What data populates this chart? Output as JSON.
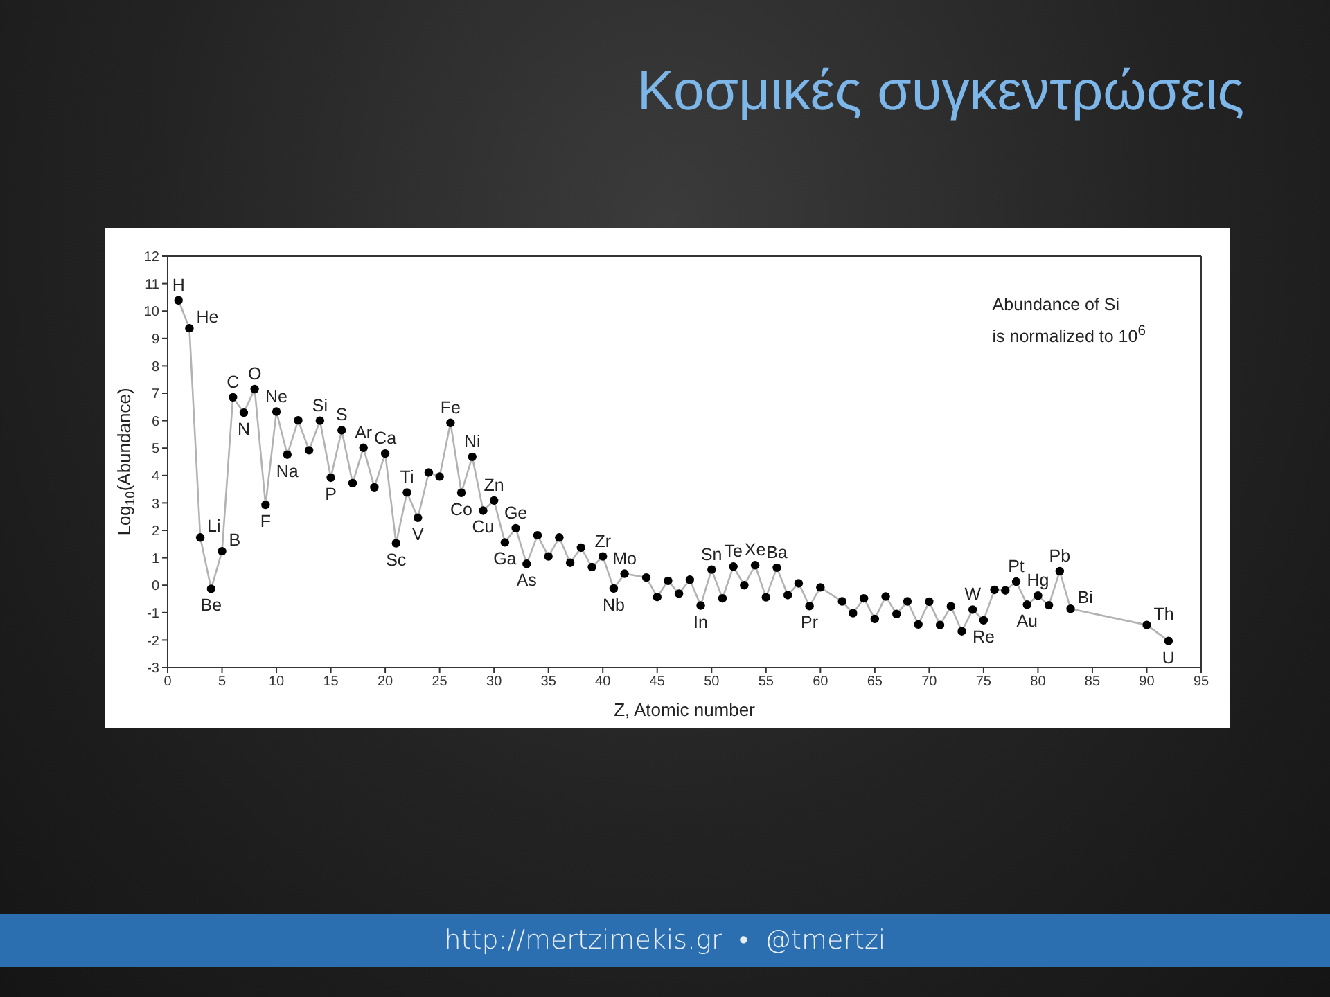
{
  "chart_data": {
    "type": "line",
    "title": "Κοσμικές συγκεντρώσεις",
    "xlabel": "Z, Atomic number",
    "ylabel": "Log$_{10}$(Abundance)",
    "x": [
      1,
      2,
      3,
      4,
      5,
      6,
      7,
      8,
      9,
      10,
      11,
      12,
      13,
      14,
      15,
      16,
      17,
      18,
      19,
      20,
      21,
      22,
      23,
      24,
      25,
      26,
      27,
      28,
      29,
      30,
      31,
      32,
      33,
      34,
      35,
      36,
      37,
      38,
      39,
      40,
      41,
      42,
      44,
      45,
      46,
      47,
      48,
      49,
      50,
      51,
      52,
      53,
      54,
      55,
      56,
      57,
      58,
      59,
      60,
      62,
      63,
      64,
      65,
      66,
      67,
      68,
      69,
      70,
      71,
      72,
      73,
      74,
      75,
      76,
      77,
      78,
      79,
      80,
      81,
      82,
      83,
      90,
      92
    ],
    "series": [
      {
        "color": "#000000",
        "values": [
          10.39,
          9.37,
          1.74,
          -0.13,
          1.24,
          6.85,
          6.29,
          7.15,
          2.93,
          6.33,
          4.76,
          6.01,
          4.92,
          6.0,
          3.92,
          5.65,
          3.72,
          5.01,
          3.57,
          4.8,
          1.53,
          3.38,
          2.46,
          4.11,
          3.96,
          5.92,
          3.37,
          4.68,
          2.72,
          3.09,
          1.56,
          2.08,
          0.78,
          1.82,
          1.05,
          1.74,
          0.82,
          1.37,
          0.66,
          1.05,
          -0.12,
          0.42,
          0.28,
          -0.43,
          0.16,
          -0.31,
          0.2,
          -0.74,
          0.57,
          -0.48,
          0.68,
          0.0,
          0.73,
          -0.44,
          0.64,
          -0.36,
          0.07,
          -0.76,
          -0.08,
          -0.59,
          -1.02,
          -0.48,
          -1.23,
          -0.41,
          -1.05,
          -0.59,
          -1.43,
          -0.6,
          -1.45,
          -0.77,
          -1.68,
          -0.89,
          -1.28,
          -0.17,
          -0.19,
          0.13,
          -0.71,
          -0.38,
          -0.73,
          0.51,
          -0.86,
          -1.45,
          -2.03
        ]
      }
    ],
    "xlim": [
      0,
      95
    ],
    "xticks": [
      0,
      5,
      10,
      15,
      20,
      25,
      30,
      35,
      40,
      45,
      50,
      55,
      60,
      65,
      70,
      75,
      80,
      85,
      90,
      95
    ],
    "ylim": [
      -3,
      12
    ],
    "yticks": [
      -3,
      -2,
      -1,
      0,
      1,
      2,
      3,
      4,
      5,
      6,
      7,
      8,
      9,
      10,
      11,
      12
    ],
    "marker": "circle",
    "line_style": "solid",
    "annotations": [
      "Abundance of Si\nis normalized to 10$^{6}$",
      "http://mertzimekis.gr • @tmertzi",
      {
        "text": "H",
        "x": 1,
        "y": 10.39
      },
      {
        "text": "He",
        "x": 2,
        "y": 9.37
      },
      {
        "text": "Li",
        "x": 3,
        "y": 1.74
      },
      {
        "text": "Be",
        "x": 4,
        "y": -0.13
      },
      {
        "text": "B",
        "x": 5,
        "y": 1.24
      },
      {
        "text": "C",
        "x": 6,
        "y": 6.85
      },
      {
        "text": "N",
        "x": 7,
        "y": 6.29
      },
      {
        "text": "O",
        "x": 8,
        "y": 7.15
      },
      {
        "text": "F",
        "x": 9,
        "y": 2.93
      },
      {
        "text": "Ne",
        "x": 10,
        "y": 6.33
      },
      {
        "text": "Na",
        "x": 11,
        "y": 4.76
      },
      {
        "text": "Si",
        "x": 14,
        "y": 6.0
      },
      {
        "text": "P",
        "x": 15,
        "y": 3.92
      },
      {
        "text": "S",
        "x": 16,
        "y": 5.65
      },
      {
        "text": "Ar",
        "x": 18,
        "y": 5.01
      },
      {
        "text": "Ca",
        "x": 20,
        "y": 4.8
      },
      {
        "text": "Sc",
        "x": 21,
        "y": 1.53
      },
      {
        "text": "Ti",
        "x": 22,
        "y": 3.38
      },
      {
        "text": "V",
        "x": 23,
        "y": 2.46
      },
      {
        "text": "Fe",
        "x": 26,
        "y": 5.92
      },
      {
        "text": "Co",
        "x": 27,
        "y": 3.37
      },
      {
        "text": "Ni",
        "x": 28,
        "y": 4.68
      },
      {
        "text": "Cu",
        "x": 29,
        "y": 2.72
      },
      {
        "text": "Zn",
        "x": 30,
        "y": 3.09
      },
      {
        "text": "Ga",
        "x": 31,
        "y": 1.56
      },
      {
        "text": "Ge",
        "x": 32,
        "y": 2.08
      },
      {
        "text": "As",
        "x": 33,
        "y": 0.78
      },
      {
        "text": "Zr",
        "x": 40,
        "y": 1.05
      },
      {
        "text": "Nb",
        "x": 41,
        "y": -0.12
      },
      {
        "text": "Mo",
        "x": 42,
        "y": 0.42
      },
      {
        "text": "In",
        "x": 49,
        "y": -0.74
      },
      {
        "text": "Sn",
        "x": 50,
        "y": 0.57
      },
      {
        "text": "Te",
        "x": 52,
        "y": 0.68
      },
      {
        "text": "Xe",
        "x": 54,
        "y": 0.73
      },
      {
        "text": "Ba",
        "x": 56,
        "y": 0.64
      },
      {
        "text": "Pr",
        "x": 59,
        "y": -0.76
      },
      {
        "text": "W",
        "x": 74,
        "y": -0.89
      },
      {
        "text": "Re",
        "x": 75,
        "y": -1.28
      },
      {
        "text": "Pt",
        "x": 78,
        "y": 0.13
      },
      {
        "text": "Au",
        "x": 79,
        "y": -0.71
      },
      {
        "text": "Hg",
        "x": 80,
        "y": -0.38
      },
      {
        "text": "Pb",
        "x": 82,
        "y": 0.51
      },
      {
        "text": "Bi",
        "x": 83,
        "y": -0.86
      },
      {
        "text": "Th",
        "x": 90,
        "y": -1.45
      },
      {
        "text": "U",
        "x": 92,
        "y": -2.03
      }
    ]
  }
}
